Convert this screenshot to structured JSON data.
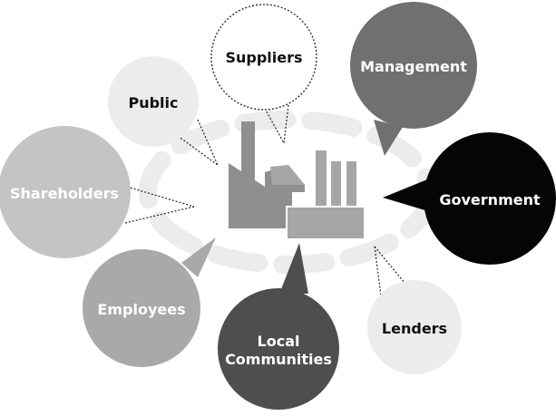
{
  "stakeholders": [
    {
      "id": "suppliers",
      "label": [
        "Suppliers"
      ],
      "fill": "#ffffff",
      "text": "#111111",
      "style": "dotted-outline"
    },
    {
      "id": "management",
      "label": [
        "Management"
      ],
      "fill": "#707070",
      "text": "#ffffff",
      "style": "solid"
    },
    {
      "id": "public",
      "label": [
        "Public"
      ],
      "fill": "#ececec",
      "text": "#111111",
      "style": "solid"
    },
    {
      "id": "shareholders",
      "label": [
        "Shareholders"
      ],
      "fill": "#c4c4c4",
      "text": "#ffffff",
      "style": "solid"
    },
    {
      "id": "government",
      "label": [
        "Government"
      ],
      "fill": "#050505",
      "text": "#ffffff",
      "style": "solid"
    },
    {
      "id": "employees",
      "label": [
        "Employees"
      ],
      "fill": "#a9a9a9",
      "text": "#ffffff",
      "style": "solid"
    },
    {
      "id": "local",
      "label": [
        "Local",
        "Communities"
      ],
      "fill": "#4e4e4e",
      "text": "#ffffff",
      "style": "solid"
    },
    {
      "id": "lenders",
      "label": [
        "Lenders"
      ],
      "fill": "#ececec",
      "text": "#111111",
      "style": "solid"
    }
  ],
  "center_icon": "factory-icon",
  "colors": {
    "ring": "#ececec",
    "factory_main": "#8f8f8f",
    "factory_front": "#a6a6a6",
    "factory_outline": "#ffffff"
  }
}
